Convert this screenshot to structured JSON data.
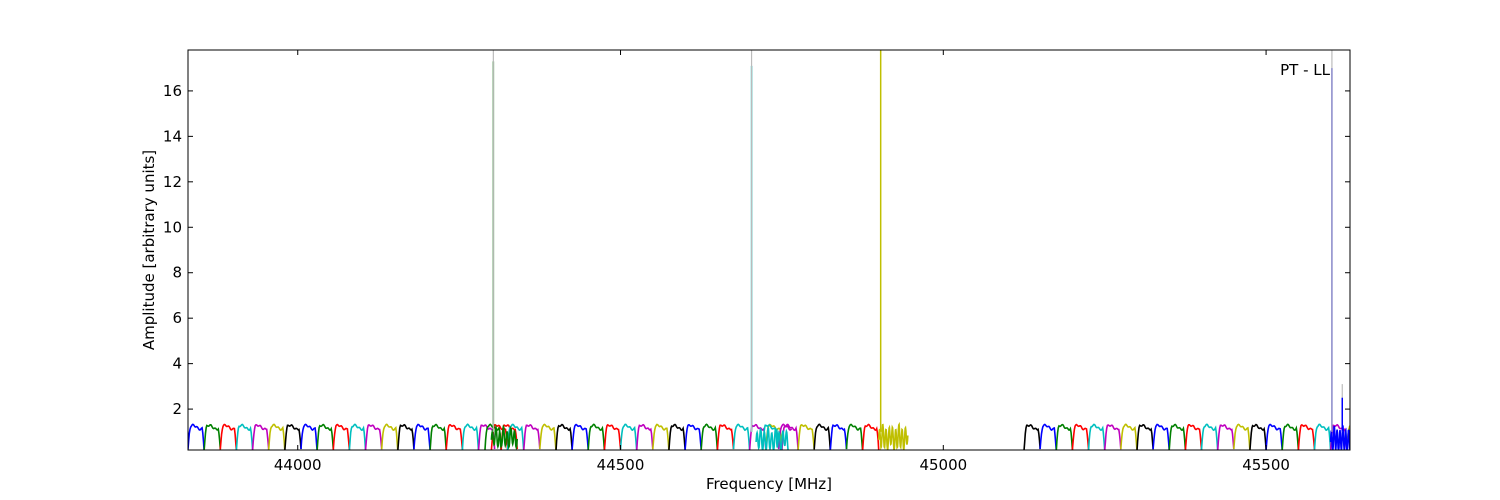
{
  "chart_data": {
    "type": "line",
    "title": "",
    "xlabel": "Frequency [MHz]",
    "ylabel": "Amplitude [arbitrary units]",
    "xlim": [
      43830,
      45630
    ],
    "ylim": [
      0.2,
      17.8
    ],
    "xticks": [
      44000,
      44500,
      45000,
      45500
    ],
    "yticks": [
      2,
      4,
      6,
      8,
      10,
      12,
      14,
      16
    ],
    "annotation": "PT - LL",
    "grid": false,
    "channel_width_mhz": 25,
    "channel_plateau": 1.2,
    "channel_floor": 0.2,
    "channel_colors": [
      "#0000ff",
      "#008000",
      "#ff0000",
      "#00bfbf",
      "#bf00bf",
      "#bfbf00",
      "#000000"
    ],
    "channels": [
      {
        "start": 43830,
        "end": 44305,
        "first_color": 0
      },
      {
        "start": 44290,
        "end": 44340,
        "first_color": 1
      },
      {
        "start": 44300,
        "end": 44750,
        "first_color": 2
      },
      {
        "start": 44720,
        "end": 44765,
        "first_color": 3
      },
      {
        "start": 44750,
        "end": 44900,
        "first_color": 4
      },
      {
        "start": 45125,
        "end": 45630,
        "first_color": 6
      }
    ],
    "spikes": [
      {
        "x": 44303,
        "y": 17.3,
        "color": "#008000"
      },
      {
        "x": 44303,
        "y": 17.8,
        "color": "#bbbbbb"
      },
      {
        "x": 44703,
        "y": 17.1,
        "color": "#00bfbf"
      },
      {
        "x": 44703,
        "y": 17.8,
        "color": "#bbbbbb"
      },
      {
        "x": 44903,
        "y": 17.8,
        "color": "#bfbf00"
      },
      {
        "x": 45602,
        "y": 17.0,
        "color": "#0000ff"
      },
      {
        "x": 45602,
        "y": 17.8,
        "color": "#bbbbbb"
      },
      {
        "x": 45618,
        "y": 3.1,
        "color": "#bbbbbb"
      },
      {
        "x": 45618,
        "y": 2.5,
        "color": "#0000ff"
      }
    ],
    "wiggles": [
      {
        "start": 44300,
        "end": 44340,
        "amp": 0.35,
        "base": 0.9,
        "color": "#008000",
        "freq": 0.35
      },
      {
        "start": 44710,
        "end": 44760,
        "amp": 0.4,
        "base": 0.8,
        "color": "#00bfbf",
        "freq": 0.35
      },
      {
        "start": 44900,
        "end": 44945,
        "amp": 0.45,
        "base": 0.9,
        "color": "#bfbf00",
        "freq": 0.4
      },
      {
        "start": 45600,
        "end": 45630,
        "amp": 0.5,
        "base": 0.8,
        "color": "#0000ff",
        "freq": 0.45
      }
    ]
  }
}
